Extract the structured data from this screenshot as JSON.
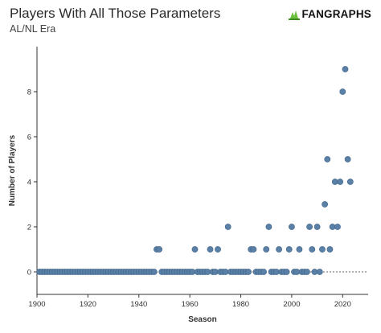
{
  "header": {
    "title": "Players With All Those Parameters",
    "subtitle": "AL/NL Era",
    "logo_text": "FANGRAPHS",
    "logo_icon": "fangraphs-leaf-logo"
  },
  "colors": {
    "point": "#5b80a8",
    "point_stroke": "#3f6386",
    "axis": "#333333",
    "zero_line": "#333333",
    "logo_green": "#6bbf3a"
  },
  "chart_data": {
    "type": "scatter",
    "title": "Players With All Those Parameters",
    "subtitle": "AL/NL Era",
    "xlabel": "Season",
    "ylabel": "Number of Players",
    "xlim": [
      1900,
      2030
    ],
    "ylim": [
      -1,
      10
    ],
    "xticks": [
      1900,
      1920,
      1940,
      1960,
      1980,
      2000,
      2020
    ],
    "yticks": [
      0,
      2,
      4,
      6,
      8
    ],
    "grid": false,
    "zero_line": true,
    "points": [
      [
        1901,
        0
      ],
      [
        1902,
        0
      ],
      [
        1903,
        0
      ],
      [
        1904,
        0
      ],
      [
        1905,
        0
      ],
      [
        1906,
        0
      ],
      [
        1907,
        0
      ],
      [
        1908,
        0
      ],
      [
        1909,
        0
      ],
      [
        1910,
        0
      ],
      [
        1911,
        0
      ],
      [
        1912,
        0
      ],
      [
        1913,
        0
      ],
      [
        1914,
        0
      ],
      [
        1915,
        0
      ],
      [
        1916,
        0
      ],
      [
        1917,
        0
      ],
      [
        1918,
        0
      ],
      [
        1919,
        0
      ],
      [
        1920,
        0
      ],
      [
        1921,
        0
      ],
      [
        1922,
        0
      ],
      [
        1923,
        0
      ],
      [
        1924,
        0
      ],
      [
        1925,
        0
      ],
      [
        1926,
        0
      ],
      [
        1927,
        0
      ],
      [
        1928,
        0
      ],
      [
        1929,
        0
      ],
      [
        1930,
        0
      ],
      [
        1931,
        0
      ],
      [
        1932,
        0
      ],
      [
        1933,
        0
      ],
      [
        1934,
        0
      ],
      [
        1935,
        0
      ],
      [
        1936,
        0
      ],
      [
        1937,
        0
      ],
      [
        1938,
        0
      ],
      [
        1939,
        0
      ],
      [
        1940,
        0
      ],
      [
        1941,
        0
      ],
      [
        1942,
        0
      ],
      [
        1943,
        0
      ],
      [
        1944,
        0
      ],
      [
        1945,
        0
      ],
      [
        1946,
        0
      ],
      [
        1947,
        1
      ],
      [
        1948,
        1
      ],
      [
        1949,
        0
      ],
      [
        1950,
        0
      ],
      [
        1951,
        0
      ],
      [
        1952,
        0
      ],
      [
        1953,
        0
      ],
      [
        1954,
        0
      ],
      [
        1955,
        0
      ],
      [
        1956,
        0
      ],
      [
        1957,
        0
      ],
      [
        1958,
        0
      ],
      [
        1959,
        0
      ],
      [
        1960,
        0
      ],
      [
        1961,
        0
      ],
      [
        1962,
        1
      ],
      [
        1963,
        0
      ],
      [
        1964,
        0
      ],
      [
        1965,
        0
      ],
      [
        1966,
        0
      ],
      [
        1967,
        0
      ],
      [
        1968,
        1
      ],
      [
        1969,
        0
      ],
      [
        1970,
        0
      ],
      [
        1971,
        1
      ],
      [
        1972,
        0
      ],
      [
        1973,
        0
      ],
      [
        1974,
        0
      ],
      [
        1975,
        2
      ],
      [
        1976,
        0
      ],
      [
        1977,
        0
      ],
      [
        1978,
        0
      ],
      [
        1979,
        0
      ],
      [
        1980,
        0
      ],
      [
        1981,
        0
      ],
      [
        1982,
        0
      ],
      [
        1983,
        0
      ],
      [
        1984,
        1
      ],
      [
        1985,
        1
      ],
      [
        1986,
        0
      ],
      [
        1987,
        0
      ],
      [
        1988,
        0
      ],
      [
        1989,
        0
      ],
      [
        1990,
        1
      ],
      [
        1991,
        2
      ],
      [
        1992,
        0
      ],
      [
        1993,
        0
      ],
      [
        1994,
        0
      ],
      [
        1995,
        1
      ],
      [
        1996,
        0
      ],
      [
        1997,
        0
      ],
      [
        1998,
        0
      ],
      [
        1999,
        1
      ],
      [
        2000,
        2
      ],
      [
        2001,
        0
      ],
      [
        2002,
        0
      ],
      [
        2003,
        1
      ],
      [
        2004,
        0
      ],
      [
        2005,
        0
      ],
      [
        2006,
        0
      ],
      [
        2007,
        2
      ],
      [
        2008,
        1
      ],
      [
        2009,
        0
      ],
      [
        2010,
        2
      ],
      [
        2011,
        0
      ],
      [
        2012,
        1
      ],
      [
        2013,
        3
      ],
      [
        2014,
        5
      ],
      [
        2015,
        1
      ],
      [
        2016,
        2
      ],
      [
        2017,
        4
      ],
      [
        2018,
        2
      ],
      [
        2019,
        4
      ],
      [
        2020,
        8
      ],
      [
        2021,
        9
      ],
      [
        2022,
        5
      ],
      [
        2023,
        4
      ]
    ]
  }
}
